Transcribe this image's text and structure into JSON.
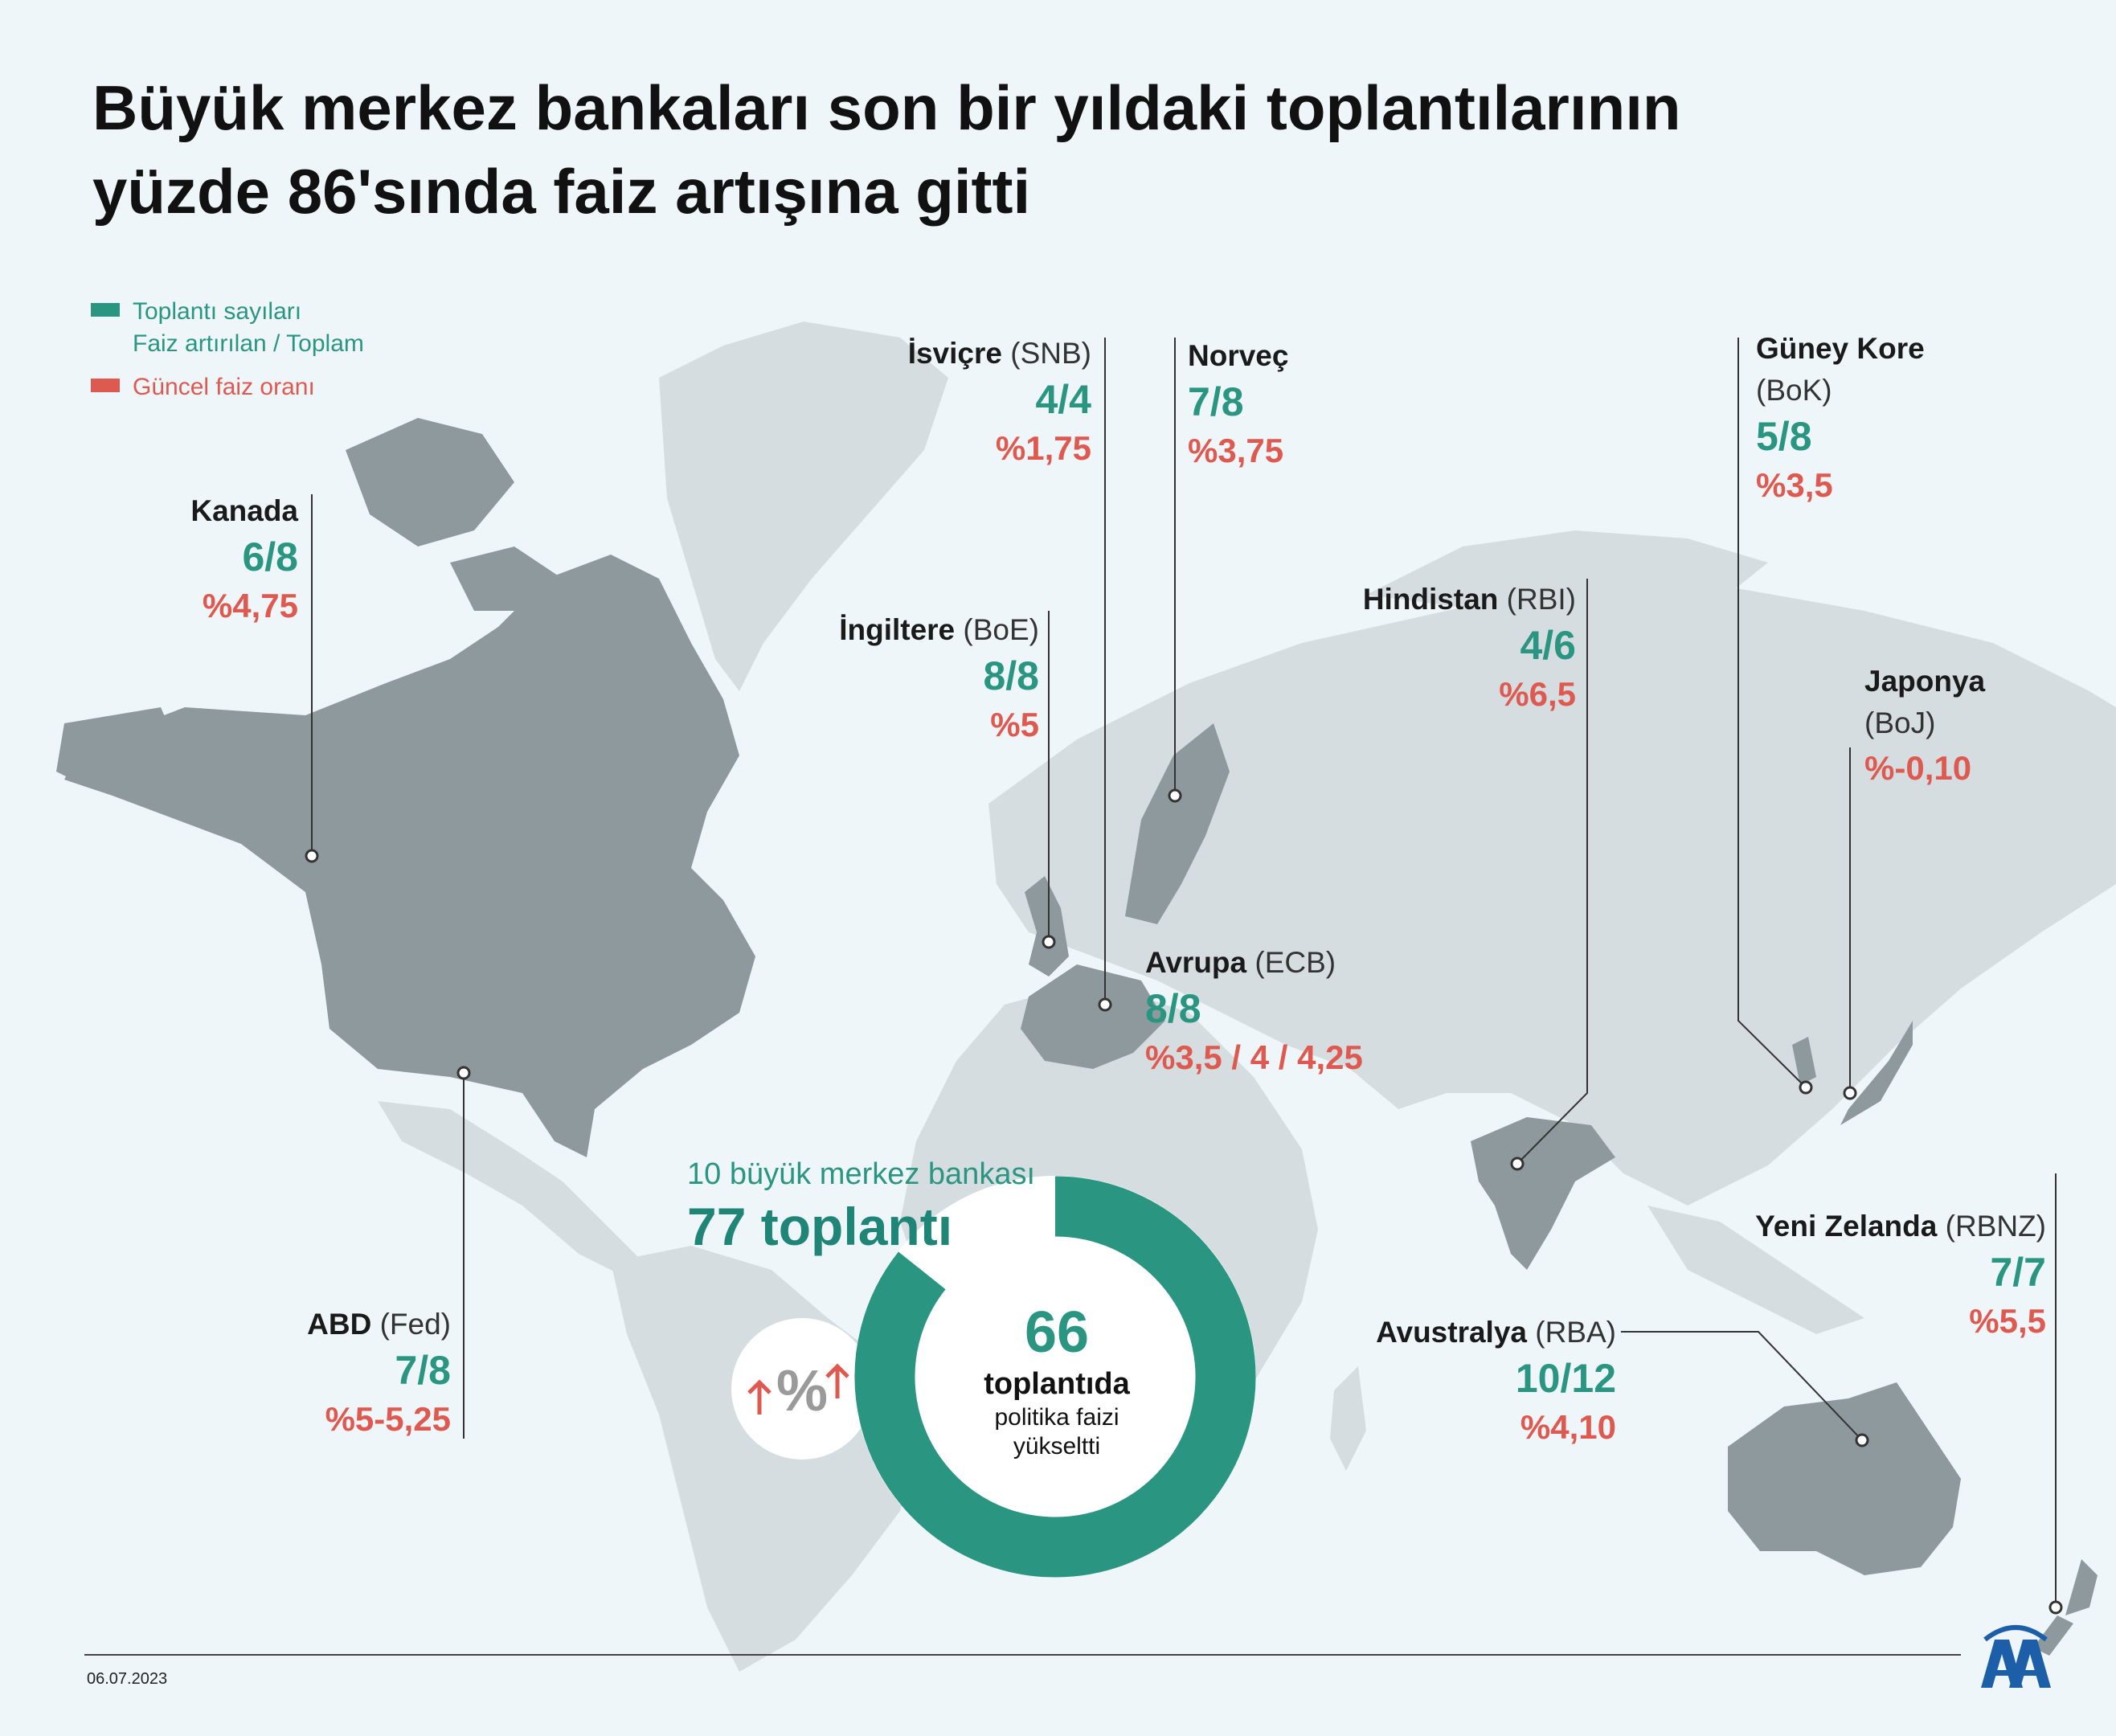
{
  "title_lines": [
    "Büyük merkez bankaları son bir yıldaki toplantılarının",
    "yüzde 86'sında faiz artışına gitti"
  ],
  "legend": {
    "meetings_label_1": "Toplantı sayıları",
    "meetings_label_2": "Faiz artırılan / Toplam",
    "rate_label": "Güncel faiz oranı",
    "meetings_color": "#2a9580",
    "rate_color": "#de5a50"
  },
  "banks": [
    {
      "key": "kanada",
      "name": "Kanada",
      "abbr": "",
      "ratio": "6/8",
      "rate": "%4,75"
    },
    {
      "key": "isvicre",
      "name": "İsviçre",
      "abbr": "(SNB)",
      "ratio": "4/4",
      "rate": "%1,75"
    },
    {
      "key": "norvec",
      "name": "Norveç",
      "abbr": "",
      "ratio": "7/8",
      "rate": "%3,75"
    },
    {
      "key": "ingiltere",
      "name": "İngiltere",
      "abbr": "(BoE)",
      "ratio": "8/8",
      "rate": "%5"
    },
    {
      "key": "avrupa",
      "name": "Avrupa",
      "abbr": "(ECB)",
      "ratio": "8/8",
      "rate": "%3,5 / 4 / 4,25"
    },
    {
      "key": "hindistan",
      "name": "Hindistan",
      "abbr": "(RBI)",
      "ratio": "4/6",
      "rate": "%6,5"
    },
    {
      "key": "guneykore",
      "name": "Güney Kore",
      "abbr": "(BoK)",
      "ratio": "5/8",
      "rate": "%3,5"
    },
    {
      "key": "japonya",
      "name": "Japonya",
      "abbr": "(BoJ)",
      "ratio": "",
      "rate": "%-0,10"
    },
    {
      "key": "abd",
      "name": "ABD",
      "abbr": "(Fed)",
      "ratio": "7/8",
      "rate": "%5-5,25"
    },
    {
      "key": "avustralya",
      "name": "Avustralya",
      "abbr": "(RBA)",
      "ratio": "10/12",
      "rate": "%4,10"
    },
    {
      "key": "yenizelanda",
      "name": "Yeni Zelanda",
      "abbr": "(RBNZ)",
      "ratio": "7/7",
      "rate": "%5,5"
    }
  ],
  "summary": {
    "subtitle": "10 büyük merkez bankası",
    "total": "77 toplantı",
    "raised_count": "66",
    "raised_line1": "toplantıda",
    "raised_line2": "politika faizi",
    "raised_line3": "yükseltti",
    "raised_meetings": 66,
    "total_meetings": 77,
    "percent_icon": "percent-up-arrows-icon"
  },
  "date": "06.07.2023",
  "logo": "AA",
  "colors": {
    "background": "#eef6f9",
    "land_light": "#d6dde0",
    "land_highlight": "#8e999e",
    "donut": "#2a9580"
  }
}
